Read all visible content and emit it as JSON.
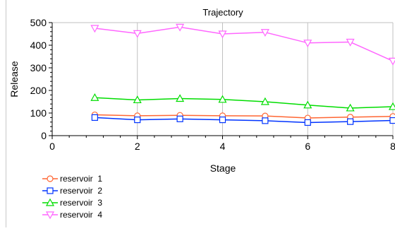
{
  "chart_data": {
    "type": "line",
    "title": "Trajectory",
    "xlabel": "Stage",
    "ylabel": "Release",
    "xlim": [
      0,
      8
    ],
    "ylim": [
      0,
      500
    ],
    "xticks": [
      0,
      2,
      4,
      6,
      8
    ],
    "yticks": [
      0,
      100,
      200,
      300,
      400,
      500
    ],
    "grid": true,
    "legend_position": "bottom-left",
    "series": [
      {
        "name": "reservoir  1",
        "color": "#ff6633",
        "marker": "circle",
        "x": [
          1,
          2,
          3,
          4,
          5,
          6,
          7,
          8
        ],
        "y": [
          92,
          88,
          90,
          88,
          87,
          78,
          82,
          85
        ]
      },
      {
        "name": "reservoir  2",
        "color": "#0033ff",
        "marker": "square",
        "x": [
          1,
          2,
          3,
          4,
          5,
          6,
          7,
          8
        ],
        "y": [
          80,
          70,
          74,
          70,
          66,
          58,
          62,
          67
        ]
      },
      {
        "name": "reservoir  3",
        "color": "#00dd00",
        "marker": "triangle-up",
        "x": [
          1,
          2,
          3,
          4,
          5,
          6,
          7,
          8
        ],
        "y": [
          168,
          158,
          164,
          160,
          150,
          135,
          122,
          128
        ]
      },
      {
        "name": "reservoir  4",
        "color": "#ff66ff",
        "marker": "triangle-down",
        "x": [
          1,
          2,
          3,
          4,
          5,
          6,
          7,
          8
        ],
        "y": [
          475,
          452,
          480,
          450,
          457,
          410,
          414,
          330
        ]
      }
    ]
  }
}
